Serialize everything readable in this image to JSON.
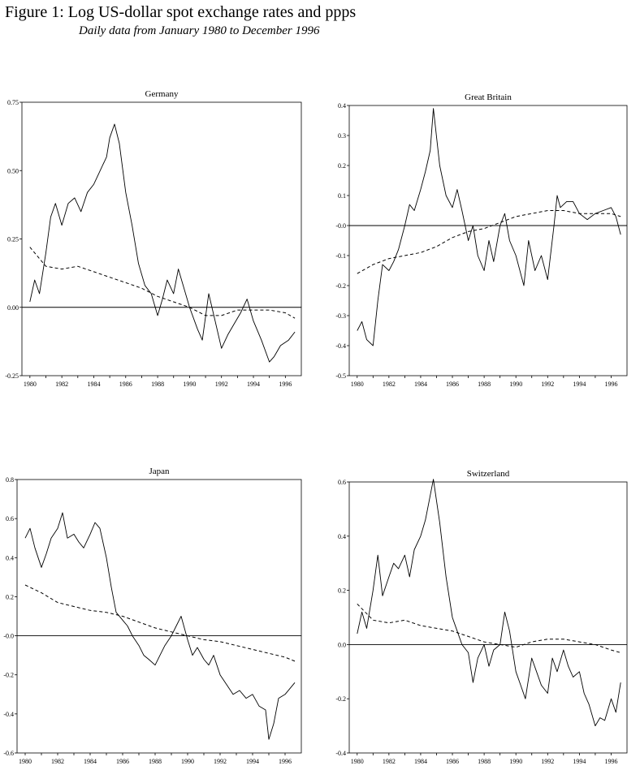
{
  "figure": {
    "title": "Figure 1:  Log US-dollar spot exchange rates and ppps",
    "subtitle": "Daily data from January 1980 to December 1996"
  },
  "chart_data": [
    {
      "type": "line",
      "title": "Germany",
      "xlim": [
        1979.5,
        1997.0
      ],
      "ylim": [
        -0.25,
        0.75
      ],
      "yticks": [
        0.75,
        0.5,
        0.25,
        0.0,
        -0.25
      ],
      "ytick_labels": [
        "0.75",
        "0.50",
        "0.25",
        "0.00",
        "-0.25"
      ],
      "xticks": [
        1980,
        1982,
        1984,
        1986,
        1988,
        1990,
        1992,
        1994,
        1996
      ],
      "xtick_labels": [
        "1980",
        "1982",
        "1984",
        "1986",
        "1988",
        "1990",
        "1992",
        "1994",
        "1996"
      ],
      "zero_line": 0,
      "series": [
        {
          "style": "solid",
          "x": [
            1980.0,
            1980.3,
            1980.6,
            1981.0,
            1981.3,
            1981.6,
            1982.0,
            1982.4,
            1982.8,
            1983.2,
            1983.6,
            1984.0,
            1984.4,
            1984.8,
            1985.0,
            1985.3,
            1985.6,
            1986.0,
            1986.4,
            1986.8,
            1987.2,
            1987.6,
            1988.0,
            1988.3,
            1988.6,
            1989.0,
            1989.3,
            1989.6,
            1990.0,
            1990.5,
            1990.8,
            1991.2,
            1991.6,
            1992.0,
            1992.4,
            1992.8,
            1993.2,
            1993.6,
            1994.0,
            1994.5,
            1995.0,
            1995.3,
            1995.7,
            1996.2,
            1996.6
          ],
          "y": [
            0.02,
            0.1,
            0.05,
            0.2,
            0.33,
            0.38,
            0.3,
            0.38,
            0.4,
            0.35,
            0.42,
            0.45,
            0.5,
            0.55,
            0.62,
            0.67,
            0.6,
            0.42,
            0.3,
            0.16,
            0.08,
            0.05,
            -0.03,
            0.03,
            0.1,
            0.05,
            0.14,
            0.08,
            0.0,
            -0.08,
            -0.12,
            0.05,
            -0.05,
            -0.15,
            -0.1,
            -0.06,
            -0.02,
            0.03,
            -0.05,
            -0.12,
            -0.2,
            -0.18,
            -0.14,
            -0.12,
            -0.09
          ]
        },
        {
          "style": "dashed",
          "x": [
            1980.0,
            1981.0,
            1982.0,
            1983.0,
            1984.0,
            1985.0,
            1986.0,
            1987.0,
            1988.0,
            1989.0,
            1990.0,
            1991.0,
            1992.0,
            1993.0,
            1994.0,
            1995.0,
            1996.0,
            1996.6
          ],
          "y": [
            0.22,
            0.15,
            0.14,
            0.15,
            0.13,
            0.11,
            0.09,
            0.07,
            0.04,
            0.02,
            0.0,
            -0.03,
            -0.03,
            -0.01,
            -0.01,
            -0.01,
            -0.02,
            -0.04
          ]
        }
      ]
    },
    {
      "type": "line",
      "title": "Great Britain",
      "xlim": [
        1979.5,
        1997.0
      ],
      "ylim": [
        -0.5,
        0.4
      ],
      "yticks": [
        0.4,
        0.3,
        0.2,
        0.1,
        0.0,
        -0.1,
        -0.2,
        -0.3,
        -0.4,
        -0.5
      ],
      "ytick_labels": [
        "0.4",
        "0.3",
        "0.2",
        "0.1",
        "-0.0",
        "-0.1",
        "-0.2",
        "-0.3",
        "-0.4",
        "-0.5"
      ],
      "xticks": [
        1980,
        1982,
        1984,
        1986,
        1988,
        1990,
        1992,
        1994,
        1996
      ],
      "xtick_labels": [
        "1980",
        "1982",
        "1984",
        "1986",
        "1988",
        "1990",
        "1992",
        "1994",
        "1996"
      ],
      "zero_line": 0,
      "series": [
        {
          "style": "solid",
          "x": [
            1980.0,
            1980.3,
            1980.6,
            1981.0,
            1981.3,
            1981.6,
            1982.0,
            1982.3,
            1982.6,
            1983.0,
            1983.3,
            1983.6,
            1984.0,
            1984.3,
            1984.6,
            1984.8,
            1985.2,
            1985.6,
            1986.0,
            1986.3,
            1986.6,
            1987.0,
            1987.3,
            1987.6,
            1988.0,
            1988.3,
            1988.6,
            1989.0,
            1989.3,
            1989.6,
            1990.0,
            1990.5,
            1990.8,
            1991.2,
            1991.6,
            1992.0,
            1992.4,
            1992.6,
            1992.8,
            1993.2,
            1993.6,
            1994.0,
            1994.5,
            1995.0,
            1995.5,
            1996.0,
            1996.3,
            1996.6
          ],
          "y": [
            -0.35,
            -0.32,
            -0.38,
            -0.4,
            -0.25,
            -0.13,
            -0.15,
            -0.12,
            -0.08,
            0.0,
            0.07,
            0.05,
            0.12,
            0.18,
            0.25,
            0.39,
            0.2,
            0.1,
            0.06,
            0.12,
            0.05,
            -0.05,
            0.0,
            -0.1,
            -0.15,
            -0.05,
            -0.12,
            0.0,
            0.04,
            -0.05,
            -0.1,
            -0.2,
            -0.05,
            -0.15,
            -0.1,
            -0.18,
            0.0,
            0.1,
            0.06,
            0.08,
            0.08,
            0.04,
            0.02,
            0.04,
            0.05,
            0.06,
            0.03,
            -0.03
          ]
        },
        {
          "style": "dashed",
          "x": [
            1980.0,
            1981.0,
            1982.0,
            1983.0,
            1984.0,
            1985.0,
            1986.0,
            1987.0,
            1988.0,
            1989.0,
            1990.0,
            1991.0,
            1992.0,
            1993.0,
            1994.0,
            1995.0,
            1996.0,
            1996.6
          ],
          "y": [
            -0.16,
            -0.13,
            -0.11,
            -0.1,
            -0.09,
            -0.07,
            -0.04,
            -0.02,
            -0.01,
            0.01,
            0.03,
            0.04,
            0.05,
            0.05,
            0.04,
            0.04,
            0.04,
            0.03
          ]
        }
      ]
    },
    {
      "type": "line",
      "title": "Japan",
      "xlim": [
        1979.5,
        1997.0
      ],
      "ylim": [
        -0.6,
        0.8
      ],
      "yticks": [
        0.8,
        0.6,
        0.4,
        0.2,
        0.0,
        -0.2,
        -0.4,
        -0.6
      ],
      "ytick_labels": [
        "0.8",
        "0.6",
        "0.4",
        "0.2",
        "-0.0",
        "-0.2",
        "-0.4",
        "-0.6"
      ],
      "xticks": [
        1980,
        1982,
        1984,
        1986,
        1988,
        1990,
        1992,
        1994,
        1996
      ],
      "xtick_labels": [
        "1980",
        "1982",
        "1984",
        "1986",
        "1988",
        "1990",
        "1992",
        "1994",
        "1996"
      ],
      "zero_line": 0,
      "series": [
        {
          "style": "solid",
          "x": [
            1980.0,
            1980.3,
            1980.6,
            1981.0,
            1981.3,
            1981.6,
            1982.0,
            1982.3,
            1982.6,
            1983.0,
            1983.3,
            1983.6,
            1984.0,
            1984.3,
            1984.6,
            1985.0,
            1985.3,
            1985.6,
            1986.0,
            1986.3,
            1986.6,
            1987.0,
            1987.3,
            1987.6,
            1988.0,
            1988.3,
            1988.6,
            1989.0,
            1989.3,
            1989.6,
            1990.0,
            1990.3,
            1990.6,
            1991.0,
            1991.3,
            1991.6,
            1992.0,
            1992.4,
            1992.8,
            1993.2,
            1993.6,
            1994.0,
            1994.4,
            1994.8,
            1995.0,
            1995.3,
            1995.6,
            1996.0,
            1996.3,
            1996.6
          ],
          "y": [
            0.5,
            0.55,
            0.45,
            0.35,
            0.42,
            0.5,
            0.55,
            0.63,
            0.5,
            0.52,
            0.48,
            0.45,
            0.52,
            0.58,
            0.55,
            0.4,
            0.25,
            0.12,
            0.08,
            0.05,
            0.0,
            -0.05,
            -0.1,
            -0.12,
            -0.15,
            -0.1,
            -0.05,
            0.0,
            0.05,
            0.1,
            -0.02,
            -0.1,
            -0.06,
            -0.12,
            -0.15,
            -0.1,
            -0.2,
            -0.25,
            -0.3,
            -0.28,
            -0.32,
            -0.3,
            -0.36,
            -0.38,
            -0.53,
            -0.45,
            -0.32,
            -0.3,
            -0.27,
            -0.24
          ]
        },
        {
          "style": "dashed",
          "x": [
            1980.0,
            1981.0,
            1982.0,
            1983.0,
            1984.0,
            1985.0,
            1986.0,
            1987.0,
            1988.0,
            1989.0,
            1990.0,
            1991.0,
            1992.0,
            1993.0,
            1994.0,
            1995.0,
            1996.0,
            1996.6
          ],
          "y": [
            0.26,
            0.22,
            0.17,
            0.15,
            0.13,
            0.12,
            0.1,
            0.07,
            0.04,
            0.02,
            0.0,
            -0.02,
            -0.03,
            -0.05,
            -0.07,
            -0.09,
            -0.11,
            -0.13
          ]
        }
      ]
    },
    {
      "type": "line",
      "title": "Switzerland",
      "xlim": [
        1979.5,
        1997.0
      ],
      "ylim": [
        -0.4,
        0.6
      ],
      "yticks": [
        0.6,
        0.4,
        0.2,
        0.0,
        -0.2,
        -0.4
      ],
      "ytick_labels": [
        "0.6",
        "0.4",
        "0.2",
        "0.0",
        "-0.2",
        "-0.4"
      ],
      "xticks": [
        1980,
        1982,
        1984,
        1986,
        1988,
        1990,
        1992,
        1994,
        1996
      ],
      "xtick_labels": [
        "1980",
        "1982",
        "1984",
        "1986",
        "1988",
        "1990",
        "1992",
        "1994",
        "1996"
      ],
      "zero_line": 0,
      "series": [
        {
          "style": "solid",
          "x": [
            1980.0,
            1980.3,
            1980.6,
            1981.0,
            1981.3,
            1981.6,
            1982.0,
            1982.3,
            1982.6,
            1983.0,
            1983.3,
            1983.6,
            1984.0,
            1984.3,
            1984.6,
            1984.8,
            1985.2,
            1985.6,
            1986.0,
            1986.3,
            1986.6,
            1987.0,
            1987.3,
            1987.6,
            1988.0,
            1988.3,
            1988.6,
            1989.0,
            1989.3,
            1989.6,
            1990.0,
            1990.3,
            1990.6,
            1991.0,
            1991.3,
            1991.6,
            1992.0,
            1992.3,
            1992.6,
            1993.0,
            1993.3,
            1993.6,
            1994.0,
            1994.3,
            1994.6,
            1995.0,
            1995.3,
            1995.6,
            1996.0,
            1996.3,
            1996.6
          ],
          "y": [
            0.04,
            0.12,
            0.06,
            0.2,
            0.33,
            0.18,
            0.25,
            0.3,
            0.28,
            0.33,
            0.25,
            0.35,
            0.4,
            0.46,
            0.55,
            0.61,
            0.45,
            0.25,
            0.1,
            0.05,
            0.0,
            -0.03,
            -0.14,
            -0.05,
            0.0,
            -0.08,
            -0.02,
            0.0,
            0.12,
            0.05,
            -0.1,
            -0.15,
            -0.2,
            -0.05,
            -0.1,
            -0.15,
            -0.18,
            -0.05,
            -0.1,
            -0.02,
            -0.08,
            -0.12,
            -0.1,
            -0.18,
            -0.22,
            -0.3,
            -0.27,
            -0.28,
            -0.2,
            -0.25,
            -0.14
          ]
        },
        {
          "style": "dashed",
          "x": [
            1980.0,
            1981.0,
            1982.0,
            1983.0,
            1984.0,
            1985.0,
            1986.0,
            1987.0,
            1988.0,
            1989.0,
            1990.0,
            1991.0,
            1992.0,
            1993.0,
            1994.0,
            1995.0,
            1996.0,
            1996.6
          ],
          "y": [
            0.15,
            0.09,
            0.08,
            0.09,
            0.07,
            0.06,
            0.05,
            0.03,
            0.01,
            0.0,
            -0.01,
            0.01,
            0.02,
            0.02,
            0.01,
            0.0,
            -0.02,
            -0.03
          ]
        }
      ]
    }
  ]
}
